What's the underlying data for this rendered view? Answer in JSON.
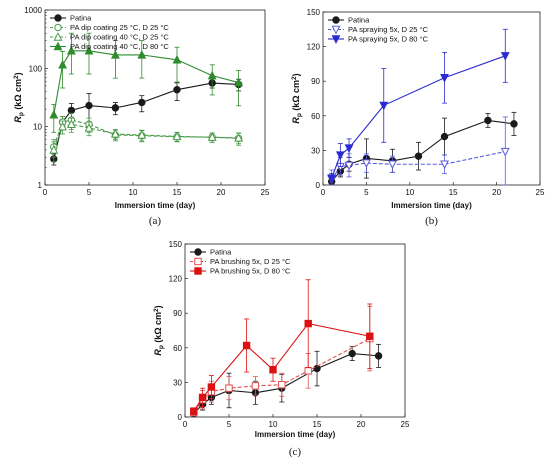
{
  "chart_data": [
    {
      "id": "a",
      "type": "line",
      "caption": "(a)",
      "xlabel": "Immersion time (day)",
      "ylabel_main": "R",
      "ylabel_sub": "p",
      "ylabel_unit": "(kΩ cm",
      "ylabel_sup": "2",
      "ylabel_end": ")",
      "xlim": [
        0,
        25
      ],
      "ylim": [
        1,
        1000
      ],
      "yscale": "log",
      "xticks": [
        0,
        5,
        10,
        15,
        20,
        25
      ],
      "yticks": [
        {
          "v": 1,
          "base": "1"
        },
        {
          "v": 10,
          "base": "10"
        },
        {
          "v": 100,
          "base": "100"
        },
        {
          "v": 1000,
          "base": "1000"
        }
      ],
      "legend_position": "top-left",
      "series": [
        {
          "name": "Patina",
          "color": "#1a1a1a",
          "marker": "circle",
          "filled": true,
          "dashed": false,
          "x": [
            1,
            2,
            3,
            5,
            8,
            11,
            15,
            19,
            22
          ],
          "y": [
            2.8,
            12,
            19,
            23,
            21,
            26,
            43,
            56,
            53
          ],
          "err": [
            0.6,
            3,
            6,
            14,
            5,
            8,
            15,
            10,
            12
          ]
        },
        {
          "name": "PA dip coating 25 °C, D 25 °C",
          "color": "#4a9a4a",
          "marker": "circle",
          "filled": false,
          "dashed": true,
          "x": [
            1,
            2,
            3,
            5,
            8,
            11,
            15,
            19,
            22
          ],
          "y": [
            4.5,
            12,
            13,
            11,
            7.2,
            7,
            6.7,
            6.6,
            6.3
          ],
          "err": [
            1.5,
            3,
            4,
            3,
            1.5,
            1.5,
            1.2,
            1.2,
            1.5
          ]
        },
        {
          "name": "PA dip coating 40 °C, D 25 °C",
          "color": "#4a9a4a",
          "marker": "triangle",
          "filled": false,
          "dashed": true,
          "x": [
            1,
            2,
            3,
            5,
            8,
            11,
            15,
            19,
            22
          ],
          "y": [
            4,
            10,
            11,
            9.5,
            7.5,
            7.2,
            6.8,
            6.6,
            6.4
          ],
          "err": [
            1.5,
            2.5,
            3,
            2.5,
            1.5,
            1.5,
            1.2,
            1.2,
            1.3
          ]
        },
        {
          "name": "PA dip coating 40 °C, D 80 °C",
          "color": "#2e8b2e",
          "marker": "triangle",
          "filled": true,
          "dashed": false,
          "x": [
            1,
            2,
            3,
            5,
            8,
            11,
            15,
            19,
            22
          ],
          "y": [
            16,
            115,
            200,
            200,
            170,
            170,
            140,
            75,
            57
          ],
          "err": [
            8,
            80,
            200,
            200,
            130,
            130,
            90,
            40,
            35
          ]
        }
      ]
    },
    {
      "id": "b",
      "type": "line",
      "caption": "(b)",
      "xlabel": "Immersion time (day)",
      "ylabel_main": "R",
      "ylabel_sub": "p",
      "ylabel_unit": "(kΩ cm",
      "ylabel_sup": "2",
      "ylabel_end": ")",
      "xlim": [
        0,
        25
      ],
      "ylim": [
        0,
        150
      ],
      "yscale": "linear",
      "xticks": [
        0,
        5,
        10,
        15,
        20,
        25
      ],
      "yticks": [
        0,
        30,
        60,
        90,
        120,
        150
      ],
      "legend_position": "top-left",
      "series": [
        {
          "name": "Patina",
          "color": "#1a1a1a",
          "marker": "circle",
          "filled": true,
          "dashed": false,
          "x": [
            1,
            2,
            3,
            5,
            8,
            11,
            14,
            19,
            22
          ],
          "y": [
            3,
            12,
            18,
            23,
            21,
            25,
            42,
            56,
            53
          ],
          "err": [
            2,
            5,
            6,
            17,
            10,
            12,
            16,
            6,
            10
          ]
        },
        {
          "name": "PA spraying 5x, D 25 °C",
          "color": "#5a5ae0",
          "marker": "triangle-down",
          "filled": false,
          "dashed": true,
          "x": [
            1,
            2,
            3,
            5,
            8,
            14,
            21
          ],
          "y": [
            5,
            16,
            17,
            19,
            18,
            18,
            29
          ],
          "err": [
            8,
            8,
            10,
            8,
            7,
            8,
            30
          ]
        },
        {
          "name": "PA spraying 5x, D 80 °C",
          "color": "#2a2ad0",
          "marker": "triangle-down",
          "filled": true,
          "dashed": false,
          "x": [
            1,
            2,
            3,
            7,
            14,
            21
          ],
          "y": [
            6,
            26,
            32,
            69,
            93,
            112
          ],
          "err": [
            4,
            10,
            8,
            32,
            22,
            23
          ]
        }
      ]
    },
    {
      "id": "c",
      "type": "line",
      "caption": "(c)",
      "xlabel": "Immersion time (day)",
      "ylabel_main": "R",
      "ylabel_sub": "p",
      "ylabel_unit": "(kΩ cm",
      "ylabel_sup": "2",
      "ylabel_end": ")",
      "xlim": [
        0,
        25
      ],
      "ylim": [
        0,
        150
      ],
      "yscale": "linear",
      "xticks": [
        0,
        5,
        10,
        15,
        20,
        25
      ],
      "yticks": [
        0,
        30,
        60,
        90,
        120,
        150
      ],
      "legend_position": "top-left",
      "series": [
        {
          "name": "Patina",
          "color": "#1a1a1a",
          "marker": "circle",
          "filled": true,
          "dashed": false,
          "x": [
            1,
            2,
            3,
            5,
            8,
            11,
            15,
            19,
            22
          ],
          "y": [
            3,
            11,
            17,
            23,
            21,
            25,
            42,
            55,
            53
          ],
          "err": [
            2,
            5,
            6,
            15,
            10,
            12,
            15,
            6,
            10
          ]
        },
        {
          "name": "PA brushing 5x, D 25 °C",
          "color": "#e05050",
          "marker": "square",
          "filled": false,
          "dashed": true,
          "x": [
            1,
            2,
            3,
            5,
            8,
            11,
            14,
            21
          ],
          "y": [
            4,
            15,
            22,
            25,
            27,
            28,
            40,
            68
          ],
          "err": [
            3,
            8,
            9,
            10,
            8,
            10,
            15,
            28
          ]
        },
        {
          "name": "PA brushing 5x, D 80 °C",
          "color": "#dd1111",
          "marker": "square",
          "filled": true,
          "dashed": false,
          "x": [
            1,
            2,
            3,
            7,
            10,
            14,
            21
          ],
          "y": [
            5,
            17,
            26,
            62,
            41,
            81,
            70
          ],
          "err": [
            3,
            8,
            10,
            23,
            10,
            38,
            28
          ]
        }
      ]
    }
  ]
}
